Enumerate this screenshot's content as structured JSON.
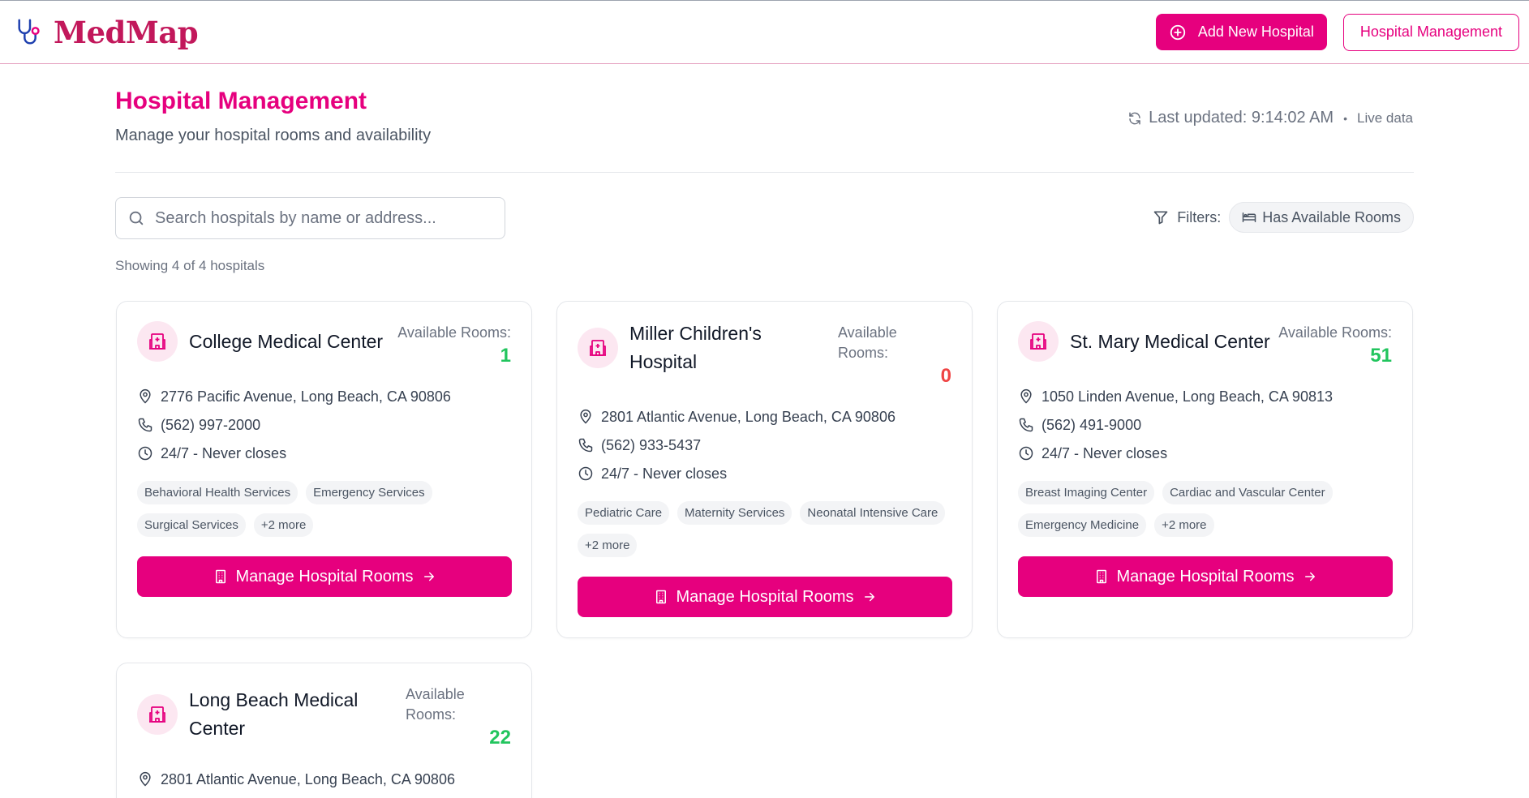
{
  "app": {
    "name": "MedMap"
  },
  "header": {
    "add_button": "Add New Hospital",
    "management_button": "Hospital Management"
  },
  "page": {
    "title": "Hospital Management",
    "subtitle": "Manage your hospital rooms and availability",
    "last_updated": "Last updated: 9:14:02 AM",
    "separator": "•",
    "live": "Live data"
  },
  "search": {
    "placeholder": "Search hospitals by name or address..."
  },
  "filters": {
    "label": "Filters:",
    "chip": "Has Available Rooms"
  },
  "results": {
    "showing": "Showing 4 of 4 hospitals"
  },
  "colors": {
    "accent": "#e6007e",
    "available": "#22c55e",
    "unavailable": "#ef4444"
  },
  "hospitals": [
    {
      "name": "College Medical Center",
      "rooms_label": "Available Rooms:",
      "rooms": "1",
      "address": "2776 Pacific Avenue, Long Beach, CA 90806",
      "phone": "(562) 997-2000",
      "hours": "24/7 - Never closes",
      "tags": [
        "Behavioral Health Services",
        "Emergency Services",
        "Surgical Services",
        "+2 more"
      ],
      "button": "Manage Hospital Rooms"
    },
    {
      "name": "Miller Children's Hospital",
      "rooms_label": "Available Rooms:",
      "rooms": "0",
      "address": "2801 Atlantic Avenue, Long Beach, CA 90806",
      "phone": "(562) 933-5437",
      "hours": "24/7 - Never closes",
      "tags": [
        "Pediatric Care",
        "Maternity Services",
        "Neonatal Intensive Care",
        "+2 more"
      ],
      "button": "Manage Hospital Rooms"
    },
    {
      "name": "St. Mary Medical Center",
      "rooms_label": "Available Rooms:",
      "rooms": "51",
      "address": "1050 Linden Avenue, Long Beach, CA 90813",
      "phone": "(562) 491-9000",
      "hours": "24/7 - Never closes",
      "tags": [
        "Breast Imaging Center",
        "Cardiac and Vascular Center",
        "Emergency Medicine",
        "+2 more"
      ],
      "button": "Manage Hospital Rooms"
    },
    {
      "name": "Long Beach Medical Center",
      "rooms_label": "Available Rooms:",
      "rooms": "22",
      "address": "2801 Atlantic Avenue, Long Beach, CA 90806"
    }
  ]
}
